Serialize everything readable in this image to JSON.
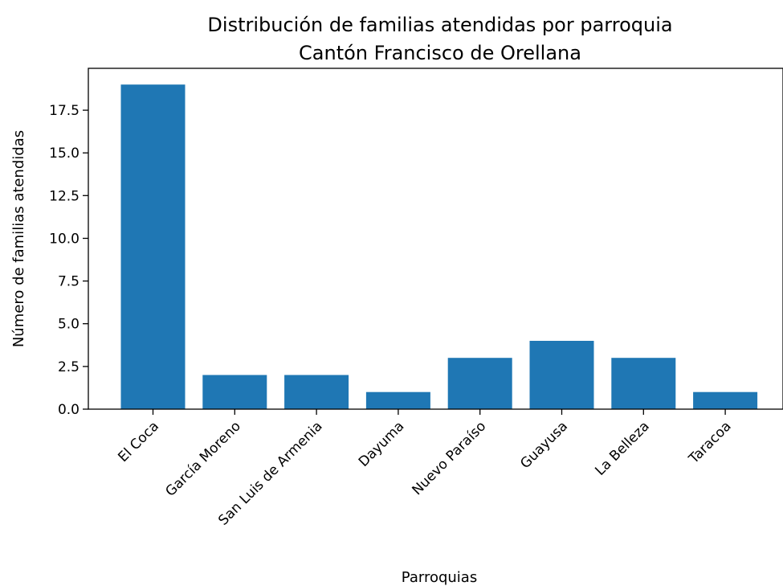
{
  "chart_data": {
    "type": "bar",
    "title": [
      "Distribución de familias atendidas por parroquia",
      "Cantón Francisco de Orellana"
    ],
    "xlabel": "Parroquias",
    "ylabel": "Número de familias atendidas",
    "categories": [
      "El Coca",
      "García Moreno",
      "San Luis de Armenia",
      "Dayuma",
      "Nuevo Paraíso",
      "Guayusa",
      "La Belleza",
      "Taracoa"
    ],
    "values": [
      19,
      2,
      2,
      1,
      3,
      4,
      3,
      1
    ],
    "ylim": [
      0,
      19.95
    ],
    "yticks": [
      0.0,
      2.5,
      5.0,
      7.5,
      10.0,
      12.5,
      15.0,
      17.5
    ],
    "ytick_labels": [
      "0.0",
      "2.5",
      "5.0",
      "7.5",
      "10.0",
      "12.5",
      "15.0",
      "17.5"
    ],
    "grid": false,
    "legend": "none",
    "bar_color": "#1f77b4",
    "xtick_rotation": -45
  }
}
